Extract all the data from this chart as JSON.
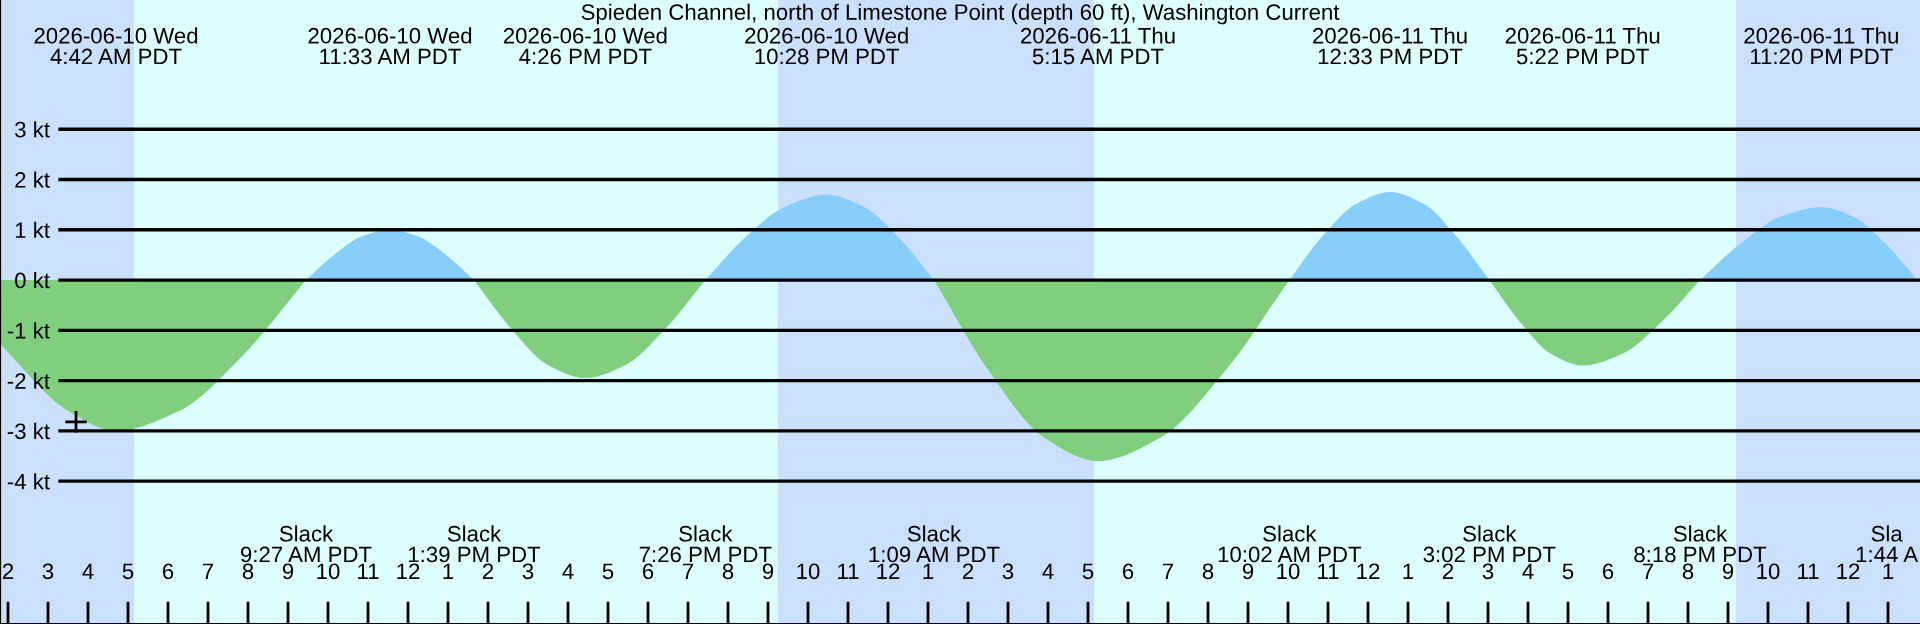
{
  "chart_data": {
    "type": "area",
    "title": "Spieden Channel, north of Limestone Point (depth 60 ft), Washington Current",
    "x": [
      "2026-06-10T01:48",
      "2026-06-10T03:30",
      "2026-06-10T04:42",
      "2026-06-10T06:17",
      "2026-06-10T07:52",
      "2026-06-10T09:27",
      "2026-06-10T10:09",
      "2026-06-10T10:51",
      "2026-06-10T11:33",
      "2026-06-10T12:15",
      "2026-06-10T12:57",
      "2026-06-10T13:39",
      "2026-06-10T14:35",
      "2026-06-10T15:30",
      "2026-06-10T16:26",
      "2026-06-10T17:26",
      "2026-06-10T18:26",
      "2026-06-10T19:26",
      "2026-06-10T20:26",
      "2026-06-10T21:27",
      "2026-06-10T22:28",
      "2026-06-10T23:22",
      "2026-06-11T00:16",
      "2026-06-11T01:09",
      "2026-06-11T02:31",
      "2026-06-11T03:53",
      "2026-06-11T05:15",
      "2026-06-11T06:50",
      "2026-06-11T08:26",
      "2026-06-11T10:02",
      "2026-06-11T10:52",
      "2026-06-11T11:43",
      "2026-06-11T12:33",
      "2026-06-11T13:23",
      "2026-06-11T14:12",
      "2026-06-11T15:02",
      "2026-06-11T15:49",
      "2026-06-11T16:35",
      "2026-06-11T17:22",
      "2026-06-11T18:21",
      "2026-06-11T19:19",
      "2026-06-11T20:18",
      "2026-06-11T21:19",
      "2026-06-11T22:19",
      "2026-06-11T23:20",
      "2026-06-12T00:08",
      "2026-06-12T00:56",
      "2026-06-12T01:44"
    ],
    "series": [
      {
        "color": "#87cefa",
        "values": [
          null,
          null,
          null,
          null,
          null,
          0,
          0.5,
          0.87,
          1.0,
          0.87,
          0.5,
          0,
          null,
          null,
          null,
          null,
          null,
          0,
          0.85,
          1.47,
          1.7,
          1.47,
          0.85,
          0,
          null,
          null,
          null,
          null,
          null,
          0,
          0.88,
          1.52,
          1.75,
          1.52,
          0.88,
          0,
          null,
          null,
          null,
          null,
          null,
          0,
          0.73,
          1.26,
          1.45,
          1.26,
          0.73,
          0
        ]
      },
      {
        "color": "#7fcf7f",
        "values": [
          -1.27,
          -2.6,
          -3.0,
          -2.6,
          -1.5,
          0,
          null,
          null,
          null,
          null,
          null,
          0,
          -0.97,
          -1.69,
          -1.95,
          -1.69,
          -0.97,
          0,
          null,
          null,
          null,
          null,
          null,
          0,
          -1.8,
          -3.12,
          -3.6,
          -3.12,
          -1.8,
          0,
          null,
          null,
          null,
          null,
          null,
          0,
          -0.85,
          -1.47,
          -1.7,
          -1.47,
          -0.85,
          0,
          null,
          null,
          null,
          null,
          null,
          null
        ]
      },
      {
        "type": "scatter",
        "marker": "cross",
        "color": "#000000",
        "x": [
          "2026-06-10T03:42"
        ],
        "values": [
          -2.82
        ]
      }
    ],
    "xlim": [
      "2026-06-10T01:48",
      "2026-06-12T01:48"
    ],
    "ylim": [
      -6.84,
      5.57
    ],
    "yticks": [
      {
        "value": -4,
        "label": "-4 kt"
      },
      {
        "value": -3,
        "label": "-3 kt"
      },
      {
        "value": -2,
        "label": "-2 kt"
      },
      {
        "value": -1,
        "label": "-1 kt"
      },
      {
        "value": 0,
        "label": "0 kt"
      },
      {
        "value": 1,
        "label": "1 kt"
      },
      {
        "value": 2,
        "label": "2 kt"
      },
      {
        "value": 3,
        "label": "3 kt"
      }
    ],
    "xticks": [
      {
        "value": "2026-06-10T02:00",
        "label": "2"
      },
      {
        "value": "2026-06-10T03:00",
        "label": "3"
      },
      {
        "value": "2026-06-10T04:00",
        "label": "4"
      },
      {
        "value": "2026-06-10T05:00",
        "label": "5"
      },
      {
        "value": "2026-06-10T06:00",
        "label": "6"
      },
      {
        "value": "2026-06-10T07:00",
        "label": "7"
      },
      {
        "value": "2026-06-10T08:00",
        "label": "8"
      },
      {
        "value": "2026-06-10T09:00",
        "label": "9"
      },
      {
        "value": "2026-06-10T10:00",
        "label": "10"
      },
      {
        "value": "2026-06-10T11:00",
        "label": "11"
      },
      {
        "value": "2026-06-10T12:00",
        "label": "12"
      },
      {
        "value": "2026-06-10T13:00",
        "label": "1"
      },
      {
        "value": "2026-06-10T14:00",
        "label": "2"
      },
      {
        "value": "2026-06-10T15:00",
        "label": "3"
      },
      {
        "value": "2026-06-10T16:00",
        "label": "4"
      },
      {
        "value": "2026-06-10T17:00",
        "label": "5"
      },
      {
        "value": "2026-06-10T18:00",
        "label": "6"
      },
      {
        "value": "2026-06-10T19:00",
        "label": "7"
      },
      {
        "value": "2026-06-10T20:00",
        "label": "8"
      },
      {
        "value": "2026-06-10T21:00",
        "label": "9"
      },
      {
        "value": "2026-06-10T22:00",
        "label": "10"
      },
      {
        "value": "2026-06-10T23:00",
        "label": "11"
      },
      {
        "value": "2026-06-11T00:00",
        "label": "12"
      },
      {
        "value": "2026-06-11T01:00",
        "label": "1"
      },
      {
        "value": "2026-06-11T02:00",
        "label": "2"
      },
      {
        "value": "2026-06-11T03:00",
        "label": "3"
      },
      {
        "value": "2026-06-11T04:00",
        "label": "4"
      },
      {
        "value": "2026-06-11T05:00",
        "label": "5"
      },
      {
        "value": "2026-06-11T06:00",
        "label": "6"
      },
      {
        "value": "2026-06-11T07:00",
        "label": "7"
      },
      {
        "value": "2026-06-11T08:00",
        "label": "8"
      },
      {
        "value": "2026-06-11T09:00",
        "label": "9"
      },
      {
        "value": "2026-06-11T10:00",
        "label": "10"
      },
      {
        "value": "2026-06-11T11:00",
        "label": "11"
      },
      {
        "value": "2026-06-11T12:00",
        "label": "12"
      },
      {
        "value": "2026-06-11T13:00",
        "label": "1"
      },
      {
        "value": "2026-06-11T14:00",
        "label": "2"
      },
      {
        "value": "2026-06-11T15:00",
        "label": "3"
      },
      {
        "value": "2026-06-11T16:00",
        "label": "4"
      },
      {
        "value": "2026-06-11T17:00",
        "label": "5"
      },
      {
        "value": "2026-06-11T18:00",
        "label": "6"
      },
      {
        "value": "2026-06-11T19:00",
        "label": "7"
      },
      {
        "value": "2026-06-11T20:00",
        "label": "8"
      },
      {
        "value": "2026-06-11T21:00",
        "label": "9"
      },
      {
        "value": "2026-06-11T22:00",
        "label": "10"
      },
      {
        "value": "2026-06-11T23:00",
        "label": "11"
      },
      {
        "value": "2026-06-12T00:00",
        "label": "12"
      },
      {
        "value": "2026-06-12T01:00",
        "label": "1"
      }
    ],
    "grid": "y",
    "bands": [
      {
        "axis": "x",
        "from": "2026-06-10T01:48",
        "to": "2026-06-10T05:09",
        "color": "#cbe0fd"
      },
      {
        "axis": "x",
        "from": "2026-06-10T05:09",
        "to": "2026-06-10T21:15",
        "color": "#ddffff"
      },
      {
        "axis": "x",
        "from": "2026-06-10T21:15",
        "to": "2026-06-11T05:09",
        "color": "#cbe0fd"
      },
      {
        "axis": "x",
        "from": "2026-06-11T05:09",
        "to": "2026-06-11T21:12",
        "color": "#ddffff"
      },
      {
        "axis": "x",
        "from": "2026-06-11T21:12",
        "to": "2026-06-12T01:48",
        "color": "#cbe0fd"
      }
    ],
    "annotations": [
      "2026-06-10 Wed\n4:42 AM PDT",
      "2026-06-10 Wed\n11:33 AM PDT",
      "2026-06-10 Wed\n4:26 PM PDT",
      "2026-06-10 Wed\n10:28 PM PDT",
      "2026-06-11 Thu\n5:15 AM PDT",
      "2026-06-11 Thu\n12:33 PM PDT",
      "2026-06-11 Thu\n5:22 PM PDT",
      "2026-06-11 Thu\n11:20 PM PDT",
      "Slack\n9:27 AM PDT",
      "Slack\n1:39 PM PDT",
      "Slack\n7:26 PM PDT",
      "Slack\n1:09 AM PDT",
      "Slack\n10:02 AM PDT",
      "Slack\n3:02 PM PDT",
      "Slack\n8:18 PM PDT",
      "Sla\n1:44 A"
    ]
  }
}
